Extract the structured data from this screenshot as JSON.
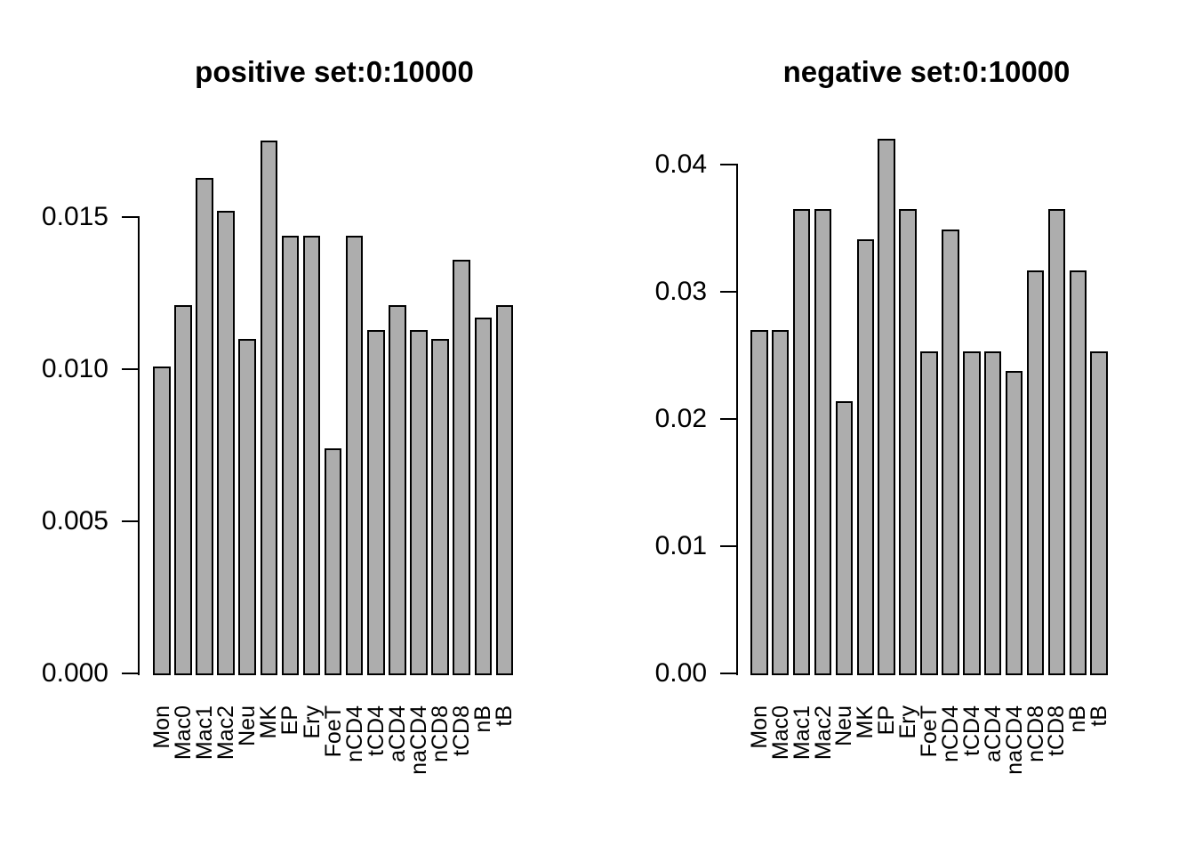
{
  "figure": {
    "background": "#ffffff",
    "bar_fill": "#adadad",
    "bar_border": "#000000",
    "axis_color": "#000000"
  },
  "chart_data": [
    {
      "type": "bar",
      "title": "positive set:0:10000",
      "xlabel": "",
      "ylabel": "",
      "categories": [
        "Mon",
        "Mac0",
        "Mac1",
        "Mac2",
        "Neu",
        "MK",
        "EP",
        "Ery",
        "FoeT",
        "nCD4",
        "tCD4",
        "aCD4",
        "naCD4",
        "nCD8",
        "tCD8",
        "nB",
        "tB"
      ],
      "values": [
        0.0101,
        0.0121,
        0.0163,
        0.0152,
        0.011,
        0.0175,
        0.0144,
        0.0144,
        0.0074,
        0.0144,
        0.0113,
        0.0121,
        0.0113,
        0.011,
        0.0136,
        0.0117,
        0.0121
      ],
      "ylim": [
        0,
        0.0175
      ],
      "ytick_values": [
        0,
        0.005,
        0.01,
        0.015
      ],
      "ytick_labels": [
        "0.000",
        "0.005",
        "0.010",
        "0.015"
      ],
      "grid": "off",
      "legend": "none",
      "bar_color": "#adadad"
    },
    {
      "type": "bar",
      "title": "negative set:0:10000",
      "xlabel": "",
      "ylabel": "",
      "categories": [
        "Mon",
        "Mac0",
        "Mac1",
        "Mac2",
        "Neu",
        "MK",
        "EP",
        "Ery",
        "FoeT",
        "nCD4",
        "tCD4",
        "aCD4",
        "naCD4",
        "nCD8",
        "tCD8",
        "nB",
        "tB"
      ],
      "values": [
        0.027,
        0.027,
        0.0365,
        0.0365,
        0.0214,
        0.0341,
        0.042,
        0.0365,
        0.0253,
        0.0349,
        0.0253,
        0.0253,
        0.0238,
        0.0317,
        0.0365,
        0.0317,
        0.0253
      ],
      "ylim": [
        0,
        0.042
      ],
      "ytick_values": [
        0,
        0.01,
        0.02,
        0.03,
        0.04
      ],
      "ytick_labels": [
        "0.00",
        "0.01",
        "0.02",
        "0.03",
        "0.04"
      ],
      "grid": "off",
      "legend": "none",
      "bar_color": "#adadad"
    }
  ]
}
